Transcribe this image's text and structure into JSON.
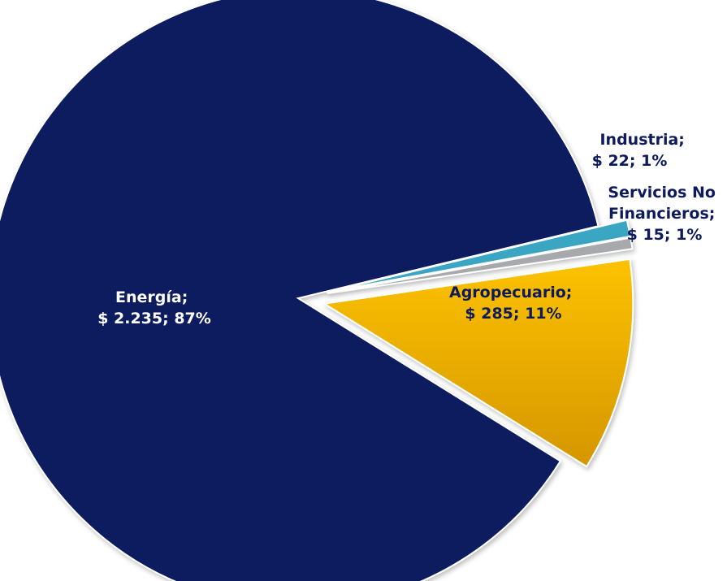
{
  "chart_data": {
    "type": "pie",
    "exploded": true,
    "slices": [
      {
        "key": "energia",
        "label_line1": "Energía;",
        "label_line2": "$ 2.235; 87%",
        "value": 2235,
        "percent": 87,
        "color": "#0b1b5e"
      },
      {
        "key": "agro",
        "label_line1": "Agropecuario;",
        "label_line2": "$ 285; 11%",
        "value": 285,
        "percent": 11,
        "color": "#f2b400"
      },
      {
        "key": "servicios",
        "label_line1": "Servicios No",
        "label_line2": "Financieros;",
        "label_line3": "$ 15; 1%",
        "value": 15,
        "percent": 1,
        "color": "#a7a9ac"
      },
      {
        "key": "industria",
        "label_line1": "Industria;",
        "label_line2": "$ 22; 1%",
        "value": 22,
        "percent": 1,
        "color": "#3aa5c4"
      }
    ]
  }
}
